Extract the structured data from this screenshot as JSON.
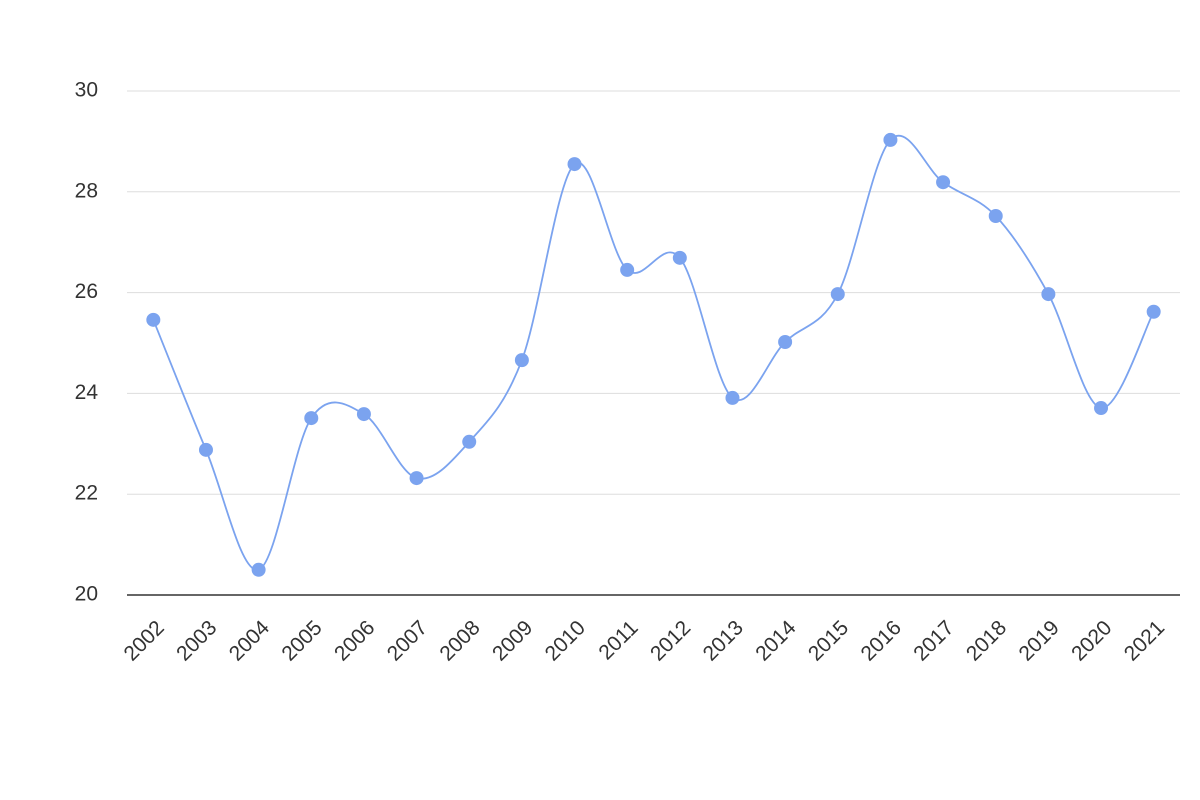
{
  "chart_data": {
    "type": "line",
    "categories": [
      "2002",
      "2003",
      "2004",
      "2005",
      "2006",
      "2007",
      "2008",
      "2009",
      "2010",
      "2011",
      "2012",
      "2013",
      "2014",
      "2015",
      "2016",
      "2017",
      "2018",
      "2019",
      "2020",
      "2021"
    ],
    "values": [
      25.46,
      22.88,
      20.5,
      23.51,
      23.59,
      22.32,
      23.04,
      24.66,
      28.55,
      26.45,
      26.69,
      23.91,
      25.02,
      25.97,
      29.03,
      28.19,
      27.52,
      25.97,
      23.71,
      25.62
    ],
    "color": "#7ba3ef",
    "ylim": [
      20,
      30
    ],
    "yticks": [
      20,
      22,
      24,
      26,
      28,
      30
    ],
    "grid": true,
    "smooth": true
  }
}
